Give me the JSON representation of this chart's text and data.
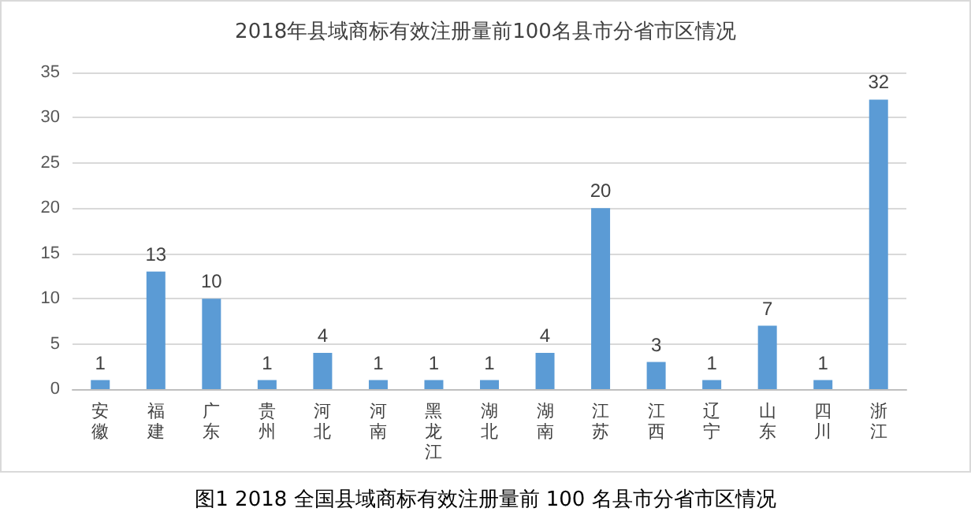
{
  "chart_data": {
    "type": "bar",
    "title": "2018年县域商标有效注册量前100名县市分省市区情况",
    "categories": [
      "安徽",
      "福建",
      "广东",
      "贵州",
      "河北",
      "河南",
      "黑龙江",
      "湖北",
      "湖南",
      "江苏",
      "江西",
      "辽宁",
      "山东",
      "四川",
      "浙江"
    ],
    "values": [
      1,
      13,
      10,
      1,
      4,
      1,
      1,
      1,
      4,
      20,
      3,
      1,
      7,
      1,
      32
    ],
    "color": "#5b9bd5",
    "ylim": [
      0,
      35
    ],
    "yticks": [
      0,
      5,
      10,
      15,
      20,
      25,
      30,
      35
    ],
    "grid": "y",
    "data_labels": true,
    "annotations": [
      "图1 2018 全国县域商标有效注册量前 100 名县市分省市区情况"
    ]
  }
}
